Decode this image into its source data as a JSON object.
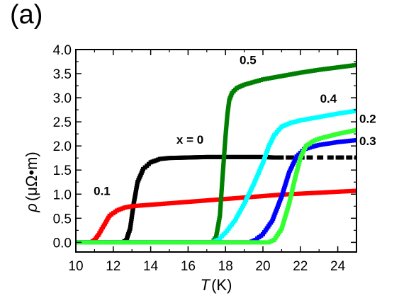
{
  "panel_label": "(a)",
  "chart_data": {
    "type": "scatter",
    "xlabel_symbol": "T",
    "xlabel_unit": "(K)",
    "ylabel_symbol": "ρ",
    "ylabel_unit": "(μΩ•m)",
    "xlim": [
      10,
      25
    ],
    "ylim": [
      -0.2,
      4.0
    ],
    "xticks": [
      10,
      12,
      14,
      16,
      18,
      20,
      22,
      24
    ],
    "xtick_labels": [
      "10",
      "12",
      "14",
      "16",
      "18",
      "20",
      "22",
      "24"
    ],
    "yticks": [
      0.0,
      0.5,
      1.0,
      1.5,
      2.0,
      2.5,
      3.0,
      3.5,
      4.0
    ],
    "ytick_labels": [
      "0.0",
      "0.5",
      "1.0",
      "1.5",
      "2.0",
      "2.5",
      "3.0",
      "3.5",
      "4.0"
    ],
    "grid": false,
    "series": [
      {
        "name": "x = 0",
        "color": "#000000",
        "x": [
          10,
          12.5,
          12.7,
          12.9,
          13.1,
          13.3,
          13.6,
          14.0,
          14.5,
          15.0,
          16.0,
          17.0,
          18.0,
          19.0,
          20.0,
          20.6,
          21,
          22,
          23,
          24,
          25
        ],
        "y": [
          0.0,
          0.0,
          0.05,
          0.28,
          0.82,
          1.25,
          1.52,
          1.66,
          1.73,
          1.75,
          1.76,
          1.77,
          1.77,
          1.77,
          1.77,
          1.76,
          1.76,
          1.76,
          1.76,
          1.76,
          1.76
        ]
      },
      {
        "name": "0.1",
        "color": "#ff0000",
        "x": [
          10,
          10.8,
          11.0,
          11.2,
          11.5,
          11.8,
          12.2,
          12.6,
          13.0,
          14.0,
          15.0,
          16.0,
          17.0,
          18.0,
          19.0,
          20.0,
          21.0,
          22.0,
          23.0,
          24.0,
          25.0
        ],
        "y": [
          0.0,
          0.0,
          0.05,
          0.15,
          0.35,
          0.55,
          0.66,
          0.72,
          0.75,
          0.78,
          0.81,
          0.84,
          0.87,
          0.9,
          0.93,
          0.96,
          0.99,
          1.01,
          1.03,
          1.05,
          1.07
        ]
      },
      {
        "name": "0.5",
        "color": "#008000",
        "x": [
          10,
          17.3,
          17.5,
          17.7,
          17.85,
          18.0,
          18.1,
          18.2,
          18.35,
          18.6,
          19.0,
          20.0,
          21.0,
          22.0,
          23.0,
          24.0,
          25.0
        ],
        "y": [
          0.0,
          0.0,
          0.12,
          0.55,
          1.4,
          2.2,
          2.65,
          2.95,
          3.1,
          3.2,
          3.27,
          3.38,
          3.45,
          3.52,
          3.58,
          3.63,
          3.68
        ]
      },
      {
        "name": "0.4",
        "color": "#00ffff",
        "x": [
          10,
          17.3,
          17.6,
          18.0,
          18.5,
          19.0,
          19.5,
          20.0,
          20.3,
          20.6,
          21.0,
          21.5,
          22.0,
          23.0,
          24.0,
          25.0
        ],
        "y": [
          0.0,
          0.0,
          0.05,
          0.2,
          0.45,
          0.8,
          1.2,
          1.65,
          1.98,
          2.22,
          2.4,
          2.48,
          2.53,
          2.6,
          2.67,
          2.73
        ]
      },
      {
        "name": "0.3",
        "color": "#0000ff",
        "x": [
          10,
          19.3,
          19.6,
          20.0,
          20.5,
          21.0,
          21.4,
          21.8,
          22.2,
          22.6,
          23.0,
          24.0,
          25.0
        ],
        "y": [
          0.0,
          0.0,
          0.05,
          0.17,
          0.45,
          0.95,
          1.45,
          1.78,
          1.93,
          1.98,
          2.02,
          2.08,
          2.12
        ]
      },
      {
        "name": "0.2",
        "color": "#33ff33",
        "x": [
          10,
          20.3,
          20.6,
          21.0,
          21.4,
          21.7,
          22.0,
          22.3,
          22.7,
          23.0,
          24.0,
          25.0
        ],
        "y": [
          0.0,
          0.0,
          0.05,
          0.28,
          0.8,
          1.3,
          1.75,
          2.0,
          2.1,
          2.15,
          2.25,
          2.33
        ]
      }
    ],
    "annotations": [
      {
        "text": "x = 0",
        "x": 16.1,
        "y": 2.05
      },
      {
        "text": "0.1",
        "x": 11.4,
        "y": 0.98
      },
      {
        "text": "0.5",
        "x": 19.2,
        "y": 3.7
      },
      {
        "text": "0.4",
        "x": 23.5,
        "y": 2.9
      },
      {
        "text": "0.2",
        "x": 25.6,
        "y": 2.48
      },
      {
        "text": "0.3",
        "x": 25.6,
        "y": 2.02
      }
    ]
  }
}
